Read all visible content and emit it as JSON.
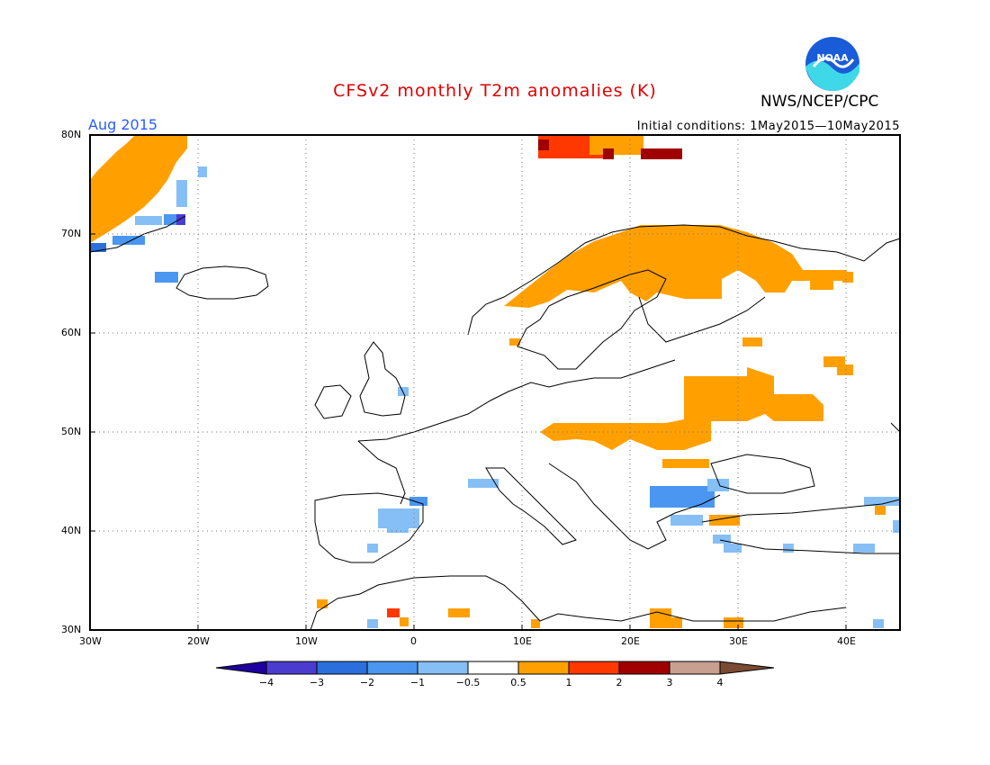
{
  "title": "CFSv2 monthly T2m anomalies (K)",
  "agency": "NWS/NCEP/CPC",
  "logo_text": "NOAA",
  "month_label": "Aug 2015",
  "initial_conditions": "Initial conditions: 1May2015—10May2015",
  "lat_labels": [
    "80N",
    "70N",
    "60N",
    "50N",
    "40N",
    "30N"
  ],
  "lon_labels": [
    "30W",
    "20W",
    "10W",
    "0",
    "10E",
    "20E",
    "30E",
    "40E"
  ],
  "colorbar": {
    "ticks": [
      "−4",
      "−3",
      "−2",
      "−1",
      "−0.5",
      "0.5",
      "1",
      "2",
      "3",
      "4"
    ],
    "colors": [
      "#1e00a0",
      "#4b3cd0",
      "#2a6fdc",
      "#4a96f0",
      "#86bff5",
      "#ffffff",
      "#ffa000",
      "#ff3800",
      "#a00000",
      "#c8a090",
      "#7a4a32"
    ]
  },
  "anomaly_regions": [
    {
      "region": "Greenland east coast",
      "category": "0.5 to 1"
    },
    {
      "region": "Scandinavia north",
      "category": "0.5 to 1"
    },
    {
      "region": "Svalbard",
      "category": "1 to 3"
    },
    {
      "region": "Belarus / western Russia",
      "category": "0.5 to 1"
    },
    {
      "region": "Central Europe",
      "category": "0.5 to 1"
    },
    {
      "region": "Iberia",
      "category": "-1 to -0.5"
    },
    {
      "region": "Balkans / Black Sea",
      "category": "-1 to -0.5"
    }
  ]
}
